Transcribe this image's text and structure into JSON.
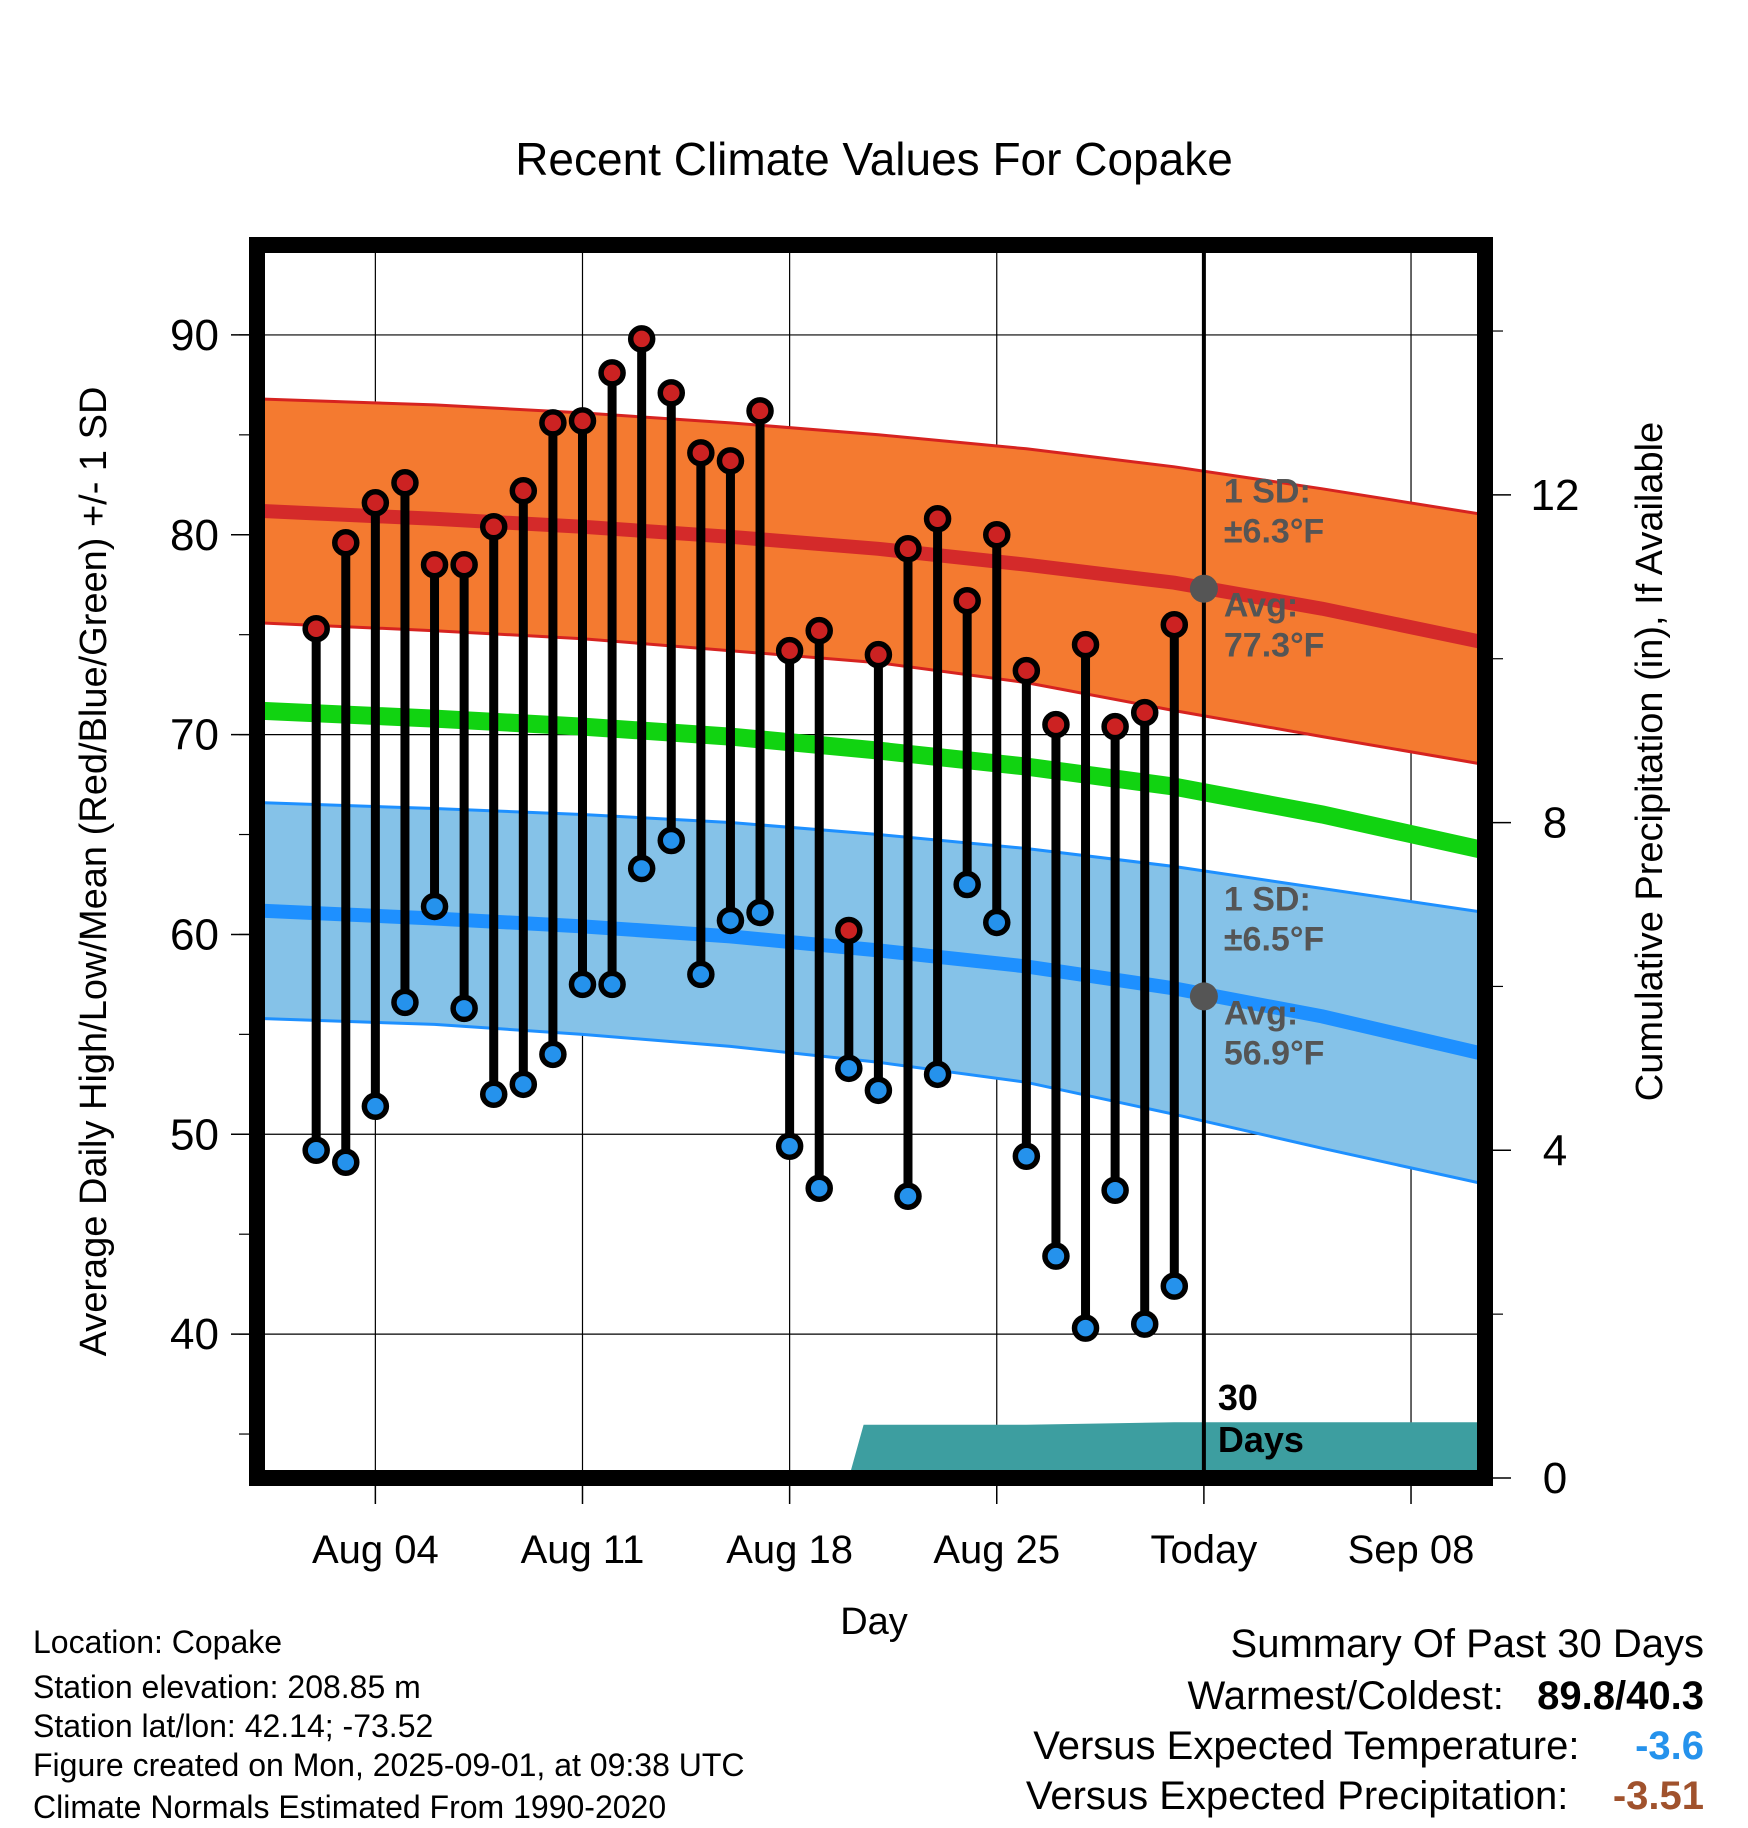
{
  "chart_data": {
    "type": "line",
    "title": "Recent Climate Values For Copake",
    "xlabel": "Day",
    "ylabel": "Average Daily High/Low/Mean (Red/Blue/Green) +/- 1 SD",
    "y2label": "Cumulative Precipitation (in), If Available",
    "ylim": [
      32.8,
      94.5
    ],
    "y2lim": [
      0,
      15.05
    ],
    "xlim": [
      -1,
      40.5
    ],
    "grid": true,
    "xticks": [
      {
        "day": 3,
        "label": "Aug 04"
      },
      {
        "day": 10,
        "label": "Aug 11"
      },
      {
        "day": 17,
        "label": "Aug 18"
      },
      {
        "day": 24,
        "label": "Aug 25"
      },
      {
        "day": 31,
        "label": "Today"
      },
      {
        "day": 38,
        "label": "Sep 08"
      }
    ],
    "yticks": [
      40,
      50,
      60,
      70,
      80,
      90
    ],
    "y2ticks": [
      0,
      4,
      8,
      12
    ],
    "today_day": 31,
    "today_label": "30\nDays",
    "days": [
      1,
      2,
      3,
      4,
      5,
      6,
      7,
      8,
      9,
      10,
      11,
      12,
      13,
      14,
      15,
      16,
      17,
      18,
      19,
      20,
      21,
      22,
      23,
      24,
      25,
      26,
      27,
      28,
      29,
      30
    ],
    "daily_high": [
      75.3,
      79.6,
      81.6,
      82.6,
      78.5,
      78.5,
      80.4,
      82.2,
      85.6,
      85.7,
      88.1,
      89.8,
      87.1,
      84.1,
      83.7,
      86.2,
      74.2,
      75.2,
      60.2,
      74.0,
      79.3,
      80.8,
      76.7,
      80.0,
      73.2,
      70.5,
      74.5,
      70.4,
      71.1,
      75.5
    ],
    "daily_low": [
      49.2,
      48.6,
      51.4,
      56.6,
      61.4,
      56.3,
      52.0,
      52.5,
      54.0,
      57.5,
      57.5,
      63.3,
      64.7,
      58.0,
      60.7,
      61.1,
      49.4,
      47.3,
      53.3,
      52.2,
      46.9,
      53.0,
      62.5,
      60.6,
      48.9,
      43.9,
      40.3,
      47.2,
      40.5,
      42.4
    ],
    "normal_days": [
      -1,
      5,
      10,
      15,
      20,
      25,
      30,
      35,
      40.5
    ],
    "normal_high": [
      81.2,
      80.8,
      80.4,
      79.9,
      79.3,
      78.5,
      77.6,
      76.3,
      74.6
    ],
    "normal_low": [
      61.2,
      60.8,
      60.4,
      59.9,
      59.2,
      58.4,
      57.3,
      55.9,
      54.0
    ],
    "normal_mean": [
      71.2,
      70.8,
      70.4,
      69.9,
      69.2,
      68.4,
      67.4,
      66.0,
      64.2
    ],
    "high_sd_upper": [
      86.8,
      86.5,
      86.1,
      85.6,
      85.0,
      84.3,
      83.4,
      82.3,
      81.0
    ],
    "high_sd_lower": [
      75.6,
      75.2,
      74.8,
      74.2,
      73.6,
      72.6,
      71.2,
      69.9,
      68.5
    ],
    "low_sd_upper": [
      66.6,
      66.3,
      66.0,
      65.6,
      65.0,
      64.3,
      63.4,
      62.3,
      61.1
    ],
    "low_sd_lower": [
      55.8,
      55.5,
      55.0,
      54.4,
      53.6,
      52.6,
      51.0,
      49.3,
      47.5
    ],
    "cumulative_precip": {
      "days": [
        18,
        19,
        19.5,
        25,
        30,
        31,
        40.5
      ],
      "values": [
        0,
        0,
        0.65,
        0.65,
        0.68,
        0.68,
        0.68
      ]
    },
    "markers": [
      {
        "day": 31,
        "value": 77.3,
        "label_top": "Avg:",
        "label_bottom": "77.3°F"
      },
      {
        "day": 31,
        "value": 56.9,
        "label_top": "Avg:",
        "label_bottom": "56.9°F"
      }
    ],
    "sd_labels": [
      {
        "line1": "1 SD:",
        "line2": "±6.3°F"
      },
      {
        "line1": "1 SD:",
        "line2": "±6.5°F"
      }
    ],
    "colors": {
      "high_band": "#f47a30",
      "high_edge": "#d62320",
      "high_line": "#d42a2a",
      "low_band": "#85c2e8",
      "low_edge": "#1e90ff",
      "low_line": "#1e90ff",
      "mean_line": "#11d311",
      "precip": "#3d9ea0",
      "high_dot": "#cc2222",
      "low_dot": "#2592ec",
      "marker": "#555555",
      "annotation": "#555555"
    }
  },
  "footer": {
    "location": "Location: Copake",
    "elevation": "Station elevation: 208.85 m",
    "latlon": "Station lat/lon: 42.14; -73.52",
    "created": "Figure created on Mon, 2025-09-01, at 09:38 UTC",
    "normals": "Climate Normals Estimated From 1990-2020"
  },
  "summary": {
    "title": "Summary Of Past 30 Days",
    "warm_cold_label": "Warmest/Coldest:",
    "warmest": "89.8",
    "separator": "/",
    "coldest": "40.3",
    "temp_label": "Versus Expected Temperature:",
    "temp_value": "-3.6",
    "temp_color": "#2592ec",
    "precip_label": "Versus Expected Precipitation:",
    "precip_value": "-3.51",
    "precip_color": "#a0522d"
  }
}
